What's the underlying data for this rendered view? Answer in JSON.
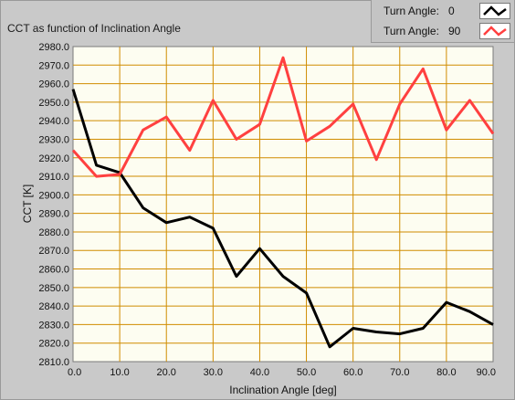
{
  "chart_data": {
    "type": "line",
    "title": "CCT as function of Inclination Angle",
    "xlabel": "Inclination Angle [deg]",
    "ylabel": "CCT [K]",
    "xlim": [
      0,
      90
    ],
    "ylim": [
      2810,
      2980
    ],
    "x_ticks": [
      "0.0",
      "10.0",
      "20.0",
      "30.0",
      "40.0",
      "50.0",
      "60.0",
      "70.0",
      "80.0",
      "90.0"
    ],
    "y_ticks": [
      "2980.0",
      "2970.0",
      "2960.0",
      "2950.0",
      "2940.0",
      "2930.0",
      "2920.0",
      "2910.0",
      "2900.0",
      "2890.0",
      "2880.0",
      "2870.0",
      "2860.0",
      "2850.0",
      "2840.0",
      "2830.0",
      "2820.0",
      "2810.0"
    ],
    "grid": true,
    "legend_position": "top-right",
    "x": [
      0,
      5,
      10,
      15,
      20,
      25,
      30,
      35,
      40,
      45,
      50,
      55,
      60,
      65,
      70,
      75,
      80,
      85,
      90
    ],
    "series": [
      {
        "legend_label": "Turn Angle:",
        "legend_value": "0",
        "color": "#000000",
        "values": [
          2957,
          2916,
          2912,
          2893,
          2885,
          2888,
          2882,
          2856,
          2871,
          2856,
          2847,
          2818,
          2828,
          2826,
          2825,
          2828,
          2842,
          2837,
          2830
        ]
      },
      {
        "legend_label": "Turn Angle:",
        "legend_value": "90",
        "color": "#ff4040",
        "values": [
          2924,
          2910,
          2911,
          2935,
          2942,
          2924,
          2951,
          2930,
          2938,
          2974,
          2929,
          2937,
          2949,
          2919,
          2949,
          2968,
          2935,
          2951,
          2933
        ]
      }
    ]
  },
  "colors": {
    "plot_background": "#fdfdf1",
    "grid": "#d08c00",
    "panel": "#c9c9c9"
  }
}
